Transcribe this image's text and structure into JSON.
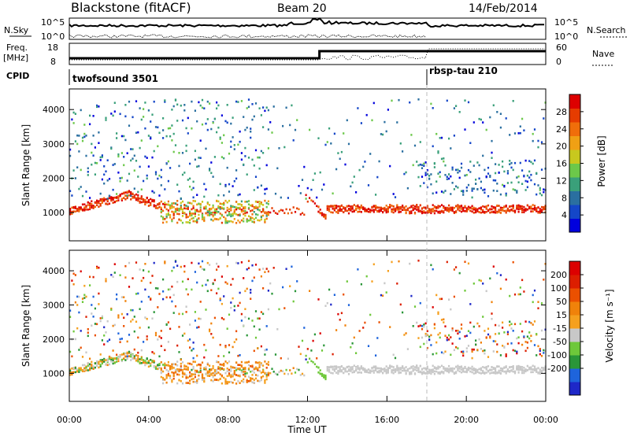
{
  "header": {
    "site": "Blackstone (fitACF)",
    "beam": "Beam 20",
    "date": "14/Feb/2014"
  },
  "strips": {
    "nsky_label": "N.Sky",
    "nsky_ticks": [
      "10^5",
      "10^0"
    ],
    "nsearch_label": "N.Search",
    "nsearch_ticks": [
      "10^5",
      "10^0"
    ],
    "freq_label": "Freq.",
    "freq_unit": "[MHz]",
    "freq_ticks": [
      18,
      8
    ],
    "nave_label": "Nave",
    "nave_ticks": [
      60,
      0
    ],
    "cpid_label": "CPID",
    "cpid_segments": [
      {
        "name": "twofsound 3501",
        "start": 0,
        "end": 18
      },
      {
        "name": "rbsp-tau 210",
        "start": 18,
        "end": 24
      }
    ]
  },
  "chart_data": [
    {
      "type": "heatmap",
      "title": "",
      "quantity": "Power",
      "xlabel": "",
      "ylabel": "Slant Range [km]",
      "xlim": [
        0,
        24
      ],
      "ylim": [
        180,
        4600
      ],
      "yticks": [
        1000,
        2000,
        3000,
        4000
      ],
      "colorbar": {
        "label": "Power [dB]",
        "ticks": [
          4,
          8,
          12,
          16,
          20,
          24,
          28
        ],
        "range": [
          0,
          32
        ],
        "colors": [
          "#0000dd",
          "#1446c8",
          "#2a6fa0",
          "#3aa07a",
          "#6cc84a",
          "#c8c81e",
          "#f0a014",
          "#f06e0a",
          "#e63c00",
          "#dd0000"
        ]
      },
      "features": [
        {
          "name": "main band",
          "start": 0,
          "end": 24,
          "range": [
            900,
            1250
          ],
          "power": 26
        },
        {
          "name": "near-range echoes",
          "start": 4.5,
          "end": 10,
          "range": [
            650,
            1200
          ],
          "power": 20
        },
        {
          "name": "far-range echoes",
          "start": 2,
          "end": 5,
          "range": [
            2800,
            4300
          ],
          "power": 10
        }
      ]
    },
    {
      "type": "heatmap",
      "title": "",
      "quantity": "Velocity",
      "xlabel": "Time UT",
      "ylabel": "Slant Range [km]",
      "xlim": [
        0,
        24
      ],
      "ylim": [
        180,
        4600
      ],
      "xticks": [
        "00:00",
        "04:00",
        "08:00",
        "12:00",
        "16:00",
        "20:00",
        "00:00"
      ],
      "yticks": [
        1000,
        2000,
        3000,
        4000
      ],
      "colorbar": {
        "label": "Velocity [m s⁻¹]",
        "ticks": [
          200,
          100,
          50,
          15,
          -15,
          -50,
          -100,
          -200
        ],
        "colors": [
          "#1e28c8",
          "#1e64dc",
          "#2a9638",
          "#6ec83a",
          "#c8c8c8",
          "#f5a01e",
          "#f0820a",
          "#eb5000",
          "#dc1e00",
          "#dc0000"
        ]
      }
    }
  ],
  "colors": {
    "frame": "#000000",
    "marker": "#bbbbbb"
  }
}
